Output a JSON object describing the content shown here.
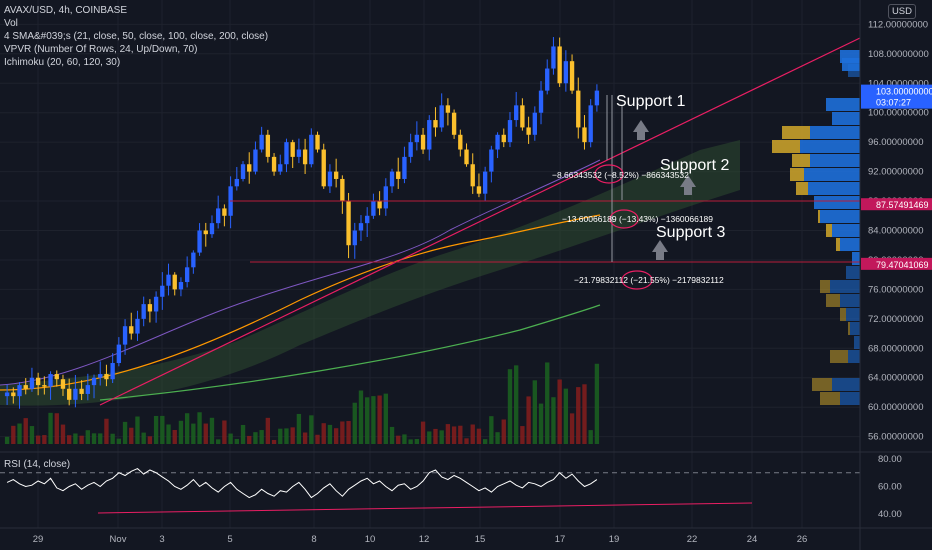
{
  "legend": {
    "symbol": "AVAX/USD, 4h, COINBASE",
    "vol": "Vol",
    "sma": "4 SMA&#039;s (21, close, 50, close, 100, close, 200, close)",
    "vpvr": "VPVR (Number Of Rows, 24, Up/Down, 70)",
    "ichimoku": "Ichimoku (20, 60, 120, 30)",
    "rsi": "RSI (14, close)"
  },
  "currency_button": "USD",
  "price_axis": [
    "112.00000000",
    "108.00000000",
    "104.00000000",
    "100.00000000",
    "96.00000000",
    "92.00000000",
    "88.00000000",
    "84.00000000",
    "80.00000000",
    "76.00000000",
    "72.00000000",
    "68.00000000",
    "64.00000000",
    "60.00000000",
    "56.00000000"
  ],
  "rsi_axis": [
    "80.00",
    "60.00",
    "40.00"
  ],
  "time_axis": [
    "29",
    "Nov",
    "3",
    "5",
    "8",
    "10",
    "12",
    "15",
    "17",
    "19",
    "22",
    "24",
    "26"
  ],
  "price_tags": {
    "current": "103.00000000",
    "countdown": "03:07:27",
    "support2": "87.57491469",
    "support3": "79.47041069"
  },
  "annotations": {
    "support1_label": "Support 1",
    "support2_label": "Support 2",
    "support3_label": "Support 3",
    "measure1": "−8.66343532 (−8.52%) −866343532",
    "measure2": "−13.60066189 (−13.43%) −1360066189",
    "measure3": "−21.79832112 (−21.55%) −2179832112"
  },
  "colors": {
    "background": "#131722",
    "up_candle": "#2962ff",
    "down_candle": "#fbc02d",
    "trendline": "#e91e63",
    "sma_fast": "#7e57c2",
    "sma_orange": "#ff9800",
    "sma_green": "#4caf50",
    "vpvr_up": "#1e6fd9",
    "vpvr_down": "#c8a02a",
    "rsi_line": "#ffffff"
  },
  "chart_data": {
    "type": "candlestick",
    "title": "AVAX/USD, 4h, COINBASE",
    "ylim": [
      55,
      113
    ],
    "close_path": [
      62,
      61.5,
      63,
      62.5,
      64,
      63,
      62.8,
      64.5,
      63.8,
      62.5,
      61,
      62.5,
      61.8,
      63,
      64,
      64.5,
      63.8,
      66,
      68.5,
      71,
      70,
      72,
      74,
      73,
      75,
      76.5,
      78,
      76,
      77,
      79,
      81,
      84,
      83.5,
      85,
      87,
      86,
      90,
      91,
      93,
      92,
      95,
      97,
      94,
      92,
      93,
      96,
      94,
      95,
      93,
      97,
      95,
      90,
      92,
      91,
      88,
      82,
      84,
      85,
      86,
      88,
      87,
      90,
      92,
      91,
      94,
      96,
      97,
      95,
      99,
      98,
      101,
      100,
      97,
      95,
      93,
      90,
      89,
      92,
      95,
      97,
      96,
      99,
      101,
      98,
      97,
      100,
      103,
      106,
      109,
      104,
      107,
      103,
      98,
      96,
      101,
      103
    ],
    "rsi_path": [
      63,
      65,
      62,
      60,
      61,
      64,
      62,
      66,
      59,
      57,
      60,
      62,
      58,
      61,
      63,
      60,
      64,
      66,
      70,
      68,
      71,
      73,
      69,
      72,
      70,
      67,
      64,
      60,
      58,
      61,
      65,
      60,
      63,
      59,
      56,
      60,
      63,
      58,
      55,
      52,
      54,
      58,
      55,
      53,
      57,
      56,
      60,
      63,
      58,
      52,
      55,
      59,
      62,
      57,
      53,
      58,
      61,
      64,
      66,
      62,
      64,
      60,
      57,
      61,
      62,
      58,
      60,
      64,
      70,
      72,
      67,
      65,
      68,
      66,
      63,
      60,
      57,
      59,
      56,
      60,
      62,
      64,
      61,
      59,
      63,
      62,
      60,
      63,
      65,
      70,
      66,
      69,
      64,
      60,
      62,
      65
    ],
    "rsi_ylim": [
      30,
      85
    ]
  }
}
